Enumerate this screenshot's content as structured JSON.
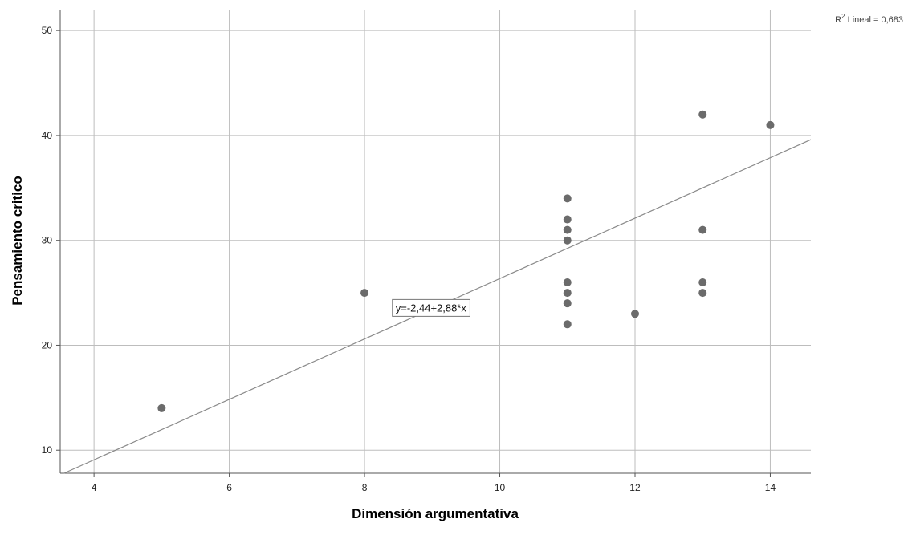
{
  "chart_data": {
    "type": "scatter",
    "title": "",
    "xlabel": "Dimensión argumentativa",
    "ylabel": "Pensamiento critico",
    "xlim": [
      3.5,
      14.6
    ],
    "ylim": [
      7.8,
      52
    ],
    "x_ticks": [
      4,
      6,
      8,
      10,
      12,
      14
    ],
    "x_tick_labels": [
      "4",
      "6",
      "8",
      "10",
      "12",
      "14"
    ],
    "y_ticks": [
      10,
      20,
      30,
      40,
      50
    ],
    "y_tick_labels": [
      "10",
      "20",
      "30",
      "40",
      "50"
    ],
    "grid": true,
    "series": [
      {
        "points": [
          {
            "x": 5,
            "y": 14
          },
          {
            "x": 8,
            "y": 25
          },
          {
            "x": 11,
            "y": 34
          },
          {
            "x": 11,
            "y": 32
          },
          {
            "x": 11,
            "y": 31
          },
          {
            "x": 11,
            "y": 30
          },
          {
            "x": 11,
            "y": 26
          },
          {
            "x": 11,
            "y": 25
          },
          {
            "x": 11,
            "y": 24
          },
          {
            "x": 11,
            "y": 22
          },
          {
            "x": 12,
            "y": 23
          },
          {
            "x": 13,
            "y": 42
          },
          {
            "x": 13,
            "y": 31
          },
          {
            "x": 13,
            "y": 26
          },
          {
            "x": 13,
            "y": 25
          },
          {
            "x": 14,
            "y": 41
          }
        ]
      }
    ],
    "fit_line": {
      "intercept": -2.44,
      "slope": 2.88,
      "equation_label": "y=-2,44+2,88*x",
      "equation_anchor": {
        "x": 8.4,
        "y": 23.6
      }
    },
    "annotation": {
      "r2_prefix": "R",
      "r2_sup": "2",
      "r2_suffix": " Lineal = 0,683"
    },
    "colors": {
      "points": "#6b6b6b",
      "grid": "#bdbdbd",
      "axis": "#555555",
      "fit_line": "#8a8a8a"
    }
  }
}
